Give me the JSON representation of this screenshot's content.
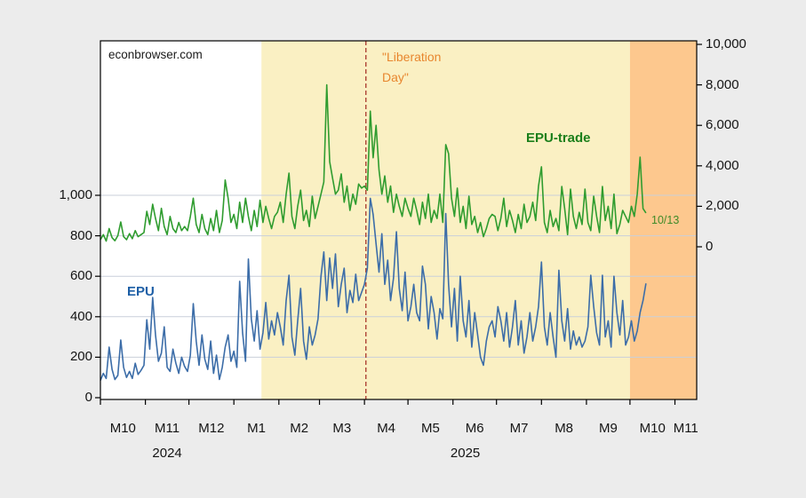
{
  "watermark": "econbrowser.com",
  "annotations": {
    "liberation_line1": "\"Liberation",
    "liberation_line2": "Day\"",
    "epu_trade_label": "EPU-trade",
    "epu_label": "EPU",
    "last_date_label": "10/13"
  },
  "colors": {
    "background": "#ececec",
    "plot_background": "#ffffff",
    "band_post_inauguration": "#faf0c3",
    "band_october": "#fdc88e",
    "grid": "#c9cfda",
    "axis": "#000000",
    "epu_line": "#3c6da8",
    "epu_label_text": "#1d5fa6",
    "epu_trade_line": "#2f9c2f",
    "epu_trade_label_text": "#1b7f1b",
    "last_date_text": "#3f8a28",
    "liberation_line_color": "#a8352a",
    "liberation_text_color": "#e8862e"
  },
  "chart_data": {
    "type": "line",
    "title": "",
    "xlabel": "",
    "ylabel_left": "",
    "ylabel_right": "",
    "grid": "horizontal, left-axis 200..1000 only",
    "legend_position": "inline text annotations",
    "x_domain": {
      "start": "2024-10-01",
      "end": "2025-11-16"
    },
    "x_step_days": 2,
    "left_axis": {
      "ticks": [
        0,
        200,
        400,
        600,
        800,
        1000
      ],
      "visible_range_at_plot": [
        0,
        1763
      ]
    },
    "right_axis": {
      "ticks": [
        0,
        2000,
        4000,
        6000,
        8000,
        10000
      ],
      "visible_range_at_plot": [
        -7544,
        10175
      ]
    },
    "x_axis": {
      "month_labels": [
        "M10",
        "M11",
        "M12",
        "M1",
        "M2",
        "M3",
        "M4",
        "M5",
        "M6",
        "M7",
        "M8",
        "M9",
        "M10",
        "M11"
      ],
      "year_labels": [
        {
          "label": "2024",
          "span": [
            "2024-10-01",
            "2025-01-01"
          ]
        },
        {
          "label": "2025",
          "span": [
            "2025-01-01",
            "2025-11-16"
          ]
        }
      ]
    },
    "bands": [
      {
        "name": "post-inauguration-shading",
        "start": "2025-01-20",
        "end": "2025-10-01",
        "color": "#faf0c3"
      },
      {
        "name": "october-partial-month-shading",
        "start": "2025-10-01",
        "end": "2025-11-16",
        "color": "#fdc88e"
      }
    ],
    "vline": {
      "date": "2025-04-02",
      "label": "\"Liberation Day\"",
      "color": "#a8352a",
      "style": "dashed"
    },
    "series": [
      {
        "name": "EPU",
        "axis": "left",
        "color": "#3c6da8",
        "values": [
          85,
          120,
          95,
          250,
          140,
          90,
          110,
          285,
          150,
          100,
          130,
          95,
          170,
          115,
          135,
          160,
          385,
          240,
          495,
          310,
          180,
          220,
          350,
          150,
          130,
          240,
          170,
          120,
          200,
          155,
          130,
          210,
          465,
          280,
          160,
          310,
          190,
          140,
          280,
          120,
          210,
          90,
          150,
          250,
          310,
          180,
          230,
          150,
          575,
          320,
          180,
          685,
          390,
          280,
          430,
          240,
          320,
          470,
          290,
          380,
          310,
          420,
          350,
          260,
          480,
          605,
          300,
          210,
          380,
          540,
          280,
          190,
          350,
          260,
          310,
          390,
          600,
          720,
          480,
          690,
          540,
          710,
          450,
          560,
          640,
          420,
          530,
          470,
          610,
          480,
          520,
          560,
          640,
          985,
          905,
          760,
          620,
          810,
          560,
          680,
          480,
          590,
          820,
          540,
          430,
          620,
          380,
          450,
          560,
          420,
          380,
          650,
          560,
          340,
          500,
          420,
          290,
          440,
          390,
          910,
          560,
          350,
          540,
          280,
          600,
          380,
          300,
          480,
          250,
          420,
          310,
          200,
          160,
          280,
          350,
          380,
          300,
          450,
          380,
          280,
          420,
          250,
          350,
          480,
          260,
          380,
          220,
          300,
          420,
          280,
          350,
          450,
          670,
          350,
          260,
          420,
          300,
          200,
          630,
          380,
          280,
          440,
          240,
          330,
          260,
          300,
          250,
          280,
          350,
          605,
          450,
          320,
          260,
          605,
          300,
          380,
          250,
          600,
          420,
          310,
          480,
          260,
          300,
          380,
          280,
          330,
          420,
          480,
          565
        ]
      },
      {
        "name": "EPU-trade",
        "axis": "right",
        "color": "#2f9c2f",
        "values": [
          350,
          600,
          280,
          900,
          450,
          300,
          550,
          1230,
          500,
          350,
          650,
          400,
          800,
          500,
          600,
          700,
          1750,
          1100,
          2100,
          1400,
          800,
          1900,
          1000,
          600,
          1500,
          900,
          700,
          1200,
          800,
          1000,
          800,
          1500,
          2400,
          1100,
          700,
          1600,
          900,
          600,
          1400,
          800,
          1800,
          700,
          1300,
          3300,
          2400,
          1200,
          1600,
          900,
          2200,
          1200,
          2400,
          1500,
          800,
          1800,
          1000,
          2300,
          1200,
          2000,
          1400,
          900,
          1500,
          1700,
          2200,
          1200,
          2600,
          3640,
          1500,
          900,
          2000,
          2800,
          1300,
          1800,
          1000,
          2500,
          1400,
          2000,
          2600,
          3200,
          8000,
          4200,
          3400,
          2600,
          2800,
          3600,
          2200,
          3000,
          1800,
          2600,
          2100,
          3100,
          2900,
          3000,
          2800,
          6700,
          4400,
          6000,
          3800,
          2600,
          3500,
          2200,
          3000,
          1700,
          2600,
          2000,
          1500,
          2400,
          1900,
          1500,
          2400,
          1800,
          1100,
          2200,
          1400,
          2600,
          1200,
          1800,
          1400,
          2600,
          1200,
          5050,
          4600,
          2400,
          1500,
          2900,
          1200,
          2000,
          900,
          2500,
          1100,
          1500,
          700,
          1200,
          500,
          900,
          1400,
          1600,
          1500,
          800,
          1400,
          2400,
          1000,
          1800,
          1300,
          700,
          1600,
          900,
          2100,
          1200,
          1500,
          2200,
          1300,
          3000,
          3950,
          1200,
          700,
          1800,
          1000,
          1400,
          800,
          2980,
          1900,
          600,
          2850,
          1500,
          900,
          1700,
          1100,
          2850,
          1200,
          800,
          2500,
          1500,
          700,
          2980,
          1300,
          2000,
          900,
          2600,
          650,
          1100,
          1800,
          1500,
          1200,
          2000,
          1500,
          2600,
          4430,
          1890,
          1670
        ]
      }
    ]
  }
}
